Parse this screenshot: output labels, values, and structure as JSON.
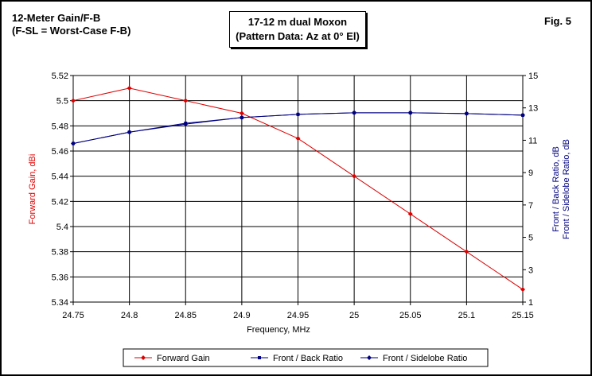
{
  "header": {
    "left_line1": "12-Meter Gain/F-B",
    "left_line2": "(F-SL = Worst-Case F-B)",
    "center_line1": "17-12 m dual Moxon",
    "center_line2": "(Pattern Data: Az at 0° El)",
    "right": "Fig. 5"
  },
  "colors": {
    "gain": "#dd0000",
    "ratio": "#000080",
    "grid": "#000000"
  },
  "chart_data": {
    "type": "line",
    "x": [
      24.75,
      24.8,
      24.85,
      24.9,
      24.95,
      25,
      25.05,
      25.1,
      25.15
    ],
    "x_tick_labels": [
      "24.75",
      "24.8",
      "24.85",
      "24.9",
      "24.95",
      "25",
      "25.05",
      "25.1",
      "25.15"
    ],
    "xlabel": "Frequency, MHz",
    "xlim": [
      24.75,
      25.15
    ],
    "ylabel_left": "Forward Gain,  dBi",
    "ylim_left": [
      5.34,
      5.52
    ],
    "y_left_tick_labels": [
      "5.34",
      "5.36",
      "5.38",
      "5.4",
      "5.42",
      "5.44",
      "5.46",
      "5.48",
      "5.5",
      "5.52"
    ],
    "ylabel_right_line1": "Front / Back Ratio,  dB",
    "ylabel_right_line2": "Front / Sidelobe Ratio,  dB",
    "ylim_right": [
      1,
      15
    ],
    "y_right_tick_labels": [
      "1",
      "3",
      "5",
      "7",
      "9",
      "11",
      "13",
      "15"
    ],
    "grid": "horizontal and vertical",
    "legend_position": "bottom",
    "series": [
      {
        "name": "Forward Gain",
        "axis": "left",
        "marker": "diamond",
        "values": [
          5.5,
          5.51,
          5.5,
          5.49,
          5.47,
          5.44,
          5.41,
          5.38,
          5.35
        ]
      },
      {
        "name": "Front / Back Ratio",
        "axis": "right",
        "marker": "square",
        "values": [
          10.8,
          11.5,
          12.05,
          12.4,
          12.6,
          12.7,
          12.7,
          12.65,
          12.55
        ]
      },
      {
        "name": "Front / Sidelobe Ratio",
        "axis": "right",
        "marker": "diamond",
        "values": [
          10.8,
          11.5,
          12.0,
          12.4,
          12.6,
          12.7,
          12.7,
          12.65,
          12.55
        ]
      }
    ]
  }
}
